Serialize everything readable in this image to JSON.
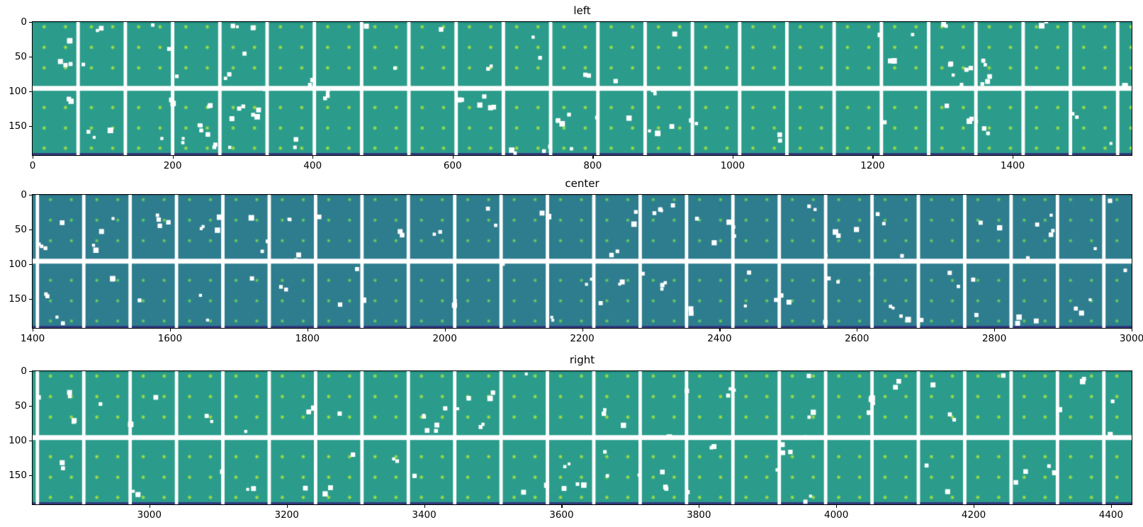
{
  "figure": {
    "background": "#ffffff",
    "spine_color": "#000000",
    "text_color": "#000000"
  },
  "chart_data": {
    "type": "heatmap",
    "layout": {
      "grid": "off",
      "legend": "none",
      "stacked_subplots": 3,
      "tick_direction": "out"
    },
    "y_range": [
      0,
      191.5
    ],
    "y_ticks": [
      0,
      50,
      100,
      150
    ],
    "mosaic": {
      "panel_pitch": 67.5,
      "panel_width": 62.5,
      "row_spans": [
        [
          0,
          92
        ],
        [
          99,
          191.5
        ]
      ],
      "gap_color": "#ffffff",
      "bottom_strip_color": "#313a7d",
      "dot_rows": [
        7,
        36.5,
        66,
        123,
        152.5,
        181.5
      ],
      "dot_cols": [
        16.5,
        47
      ],
      "dot_radius": 3.4,
      "speck_min_size": 4,
      "speck_max_size": 8,
      "speck_color": "#ffffff",
      "speck_cluster_prob": 0.35
    },
    "subplots": [
      {
        "title": "left",
        "x_range": [
          0,
          1570
        ],
        "x_ticks": [
          0,
          200,
          400,
          600,
          800,
          1000,
          1200,
          1400
        ],
        "panel_color": "#2b9c8b",
        "panel_top_edge": "#1f8177",
        "dot_core": "#cce84b",
        "dot_mid": "#7fd14f",
        "mosaic_origin": 0,
        "speck_seed": 7,
        "speck_count": 80
      },
      {
        "title": "center",
        "x_range": [
          1400,
          3000
        ],
        "x_ticks": [
          1400,
          1600,
          1800,
          2000,
          2200,
          2400,
          2600,
          2800,
          3000
        ],
        "panel_color": "#2e7d8e",
        "panel_top_edge": "#25697c",
        "dot_core": "#b8e245",
        "dot_mid": "#44b273",
        "mosaic_origin": 1342,
        "speck_seed": 13,
        "speck_count": 90
      },
      {
        "title": "right",
        "x_range": [
          2830,
          4430
        ],
        "x_ticks": [
          3000,
          3200,
          3400,
          3600,
          3800,
          4000,
          4200,
          4400
        ],
        "panel_color": "#2b9c8b",
        "panel_top_edge": "#1f8177",
        "dot_core": "#cce84b",
        "dot_mid": "#7fd14f",
        "mosaic_origin": 2772,
        "speck_seed": 29,
        "speck_count": 70
      }
    ]
  }
}
